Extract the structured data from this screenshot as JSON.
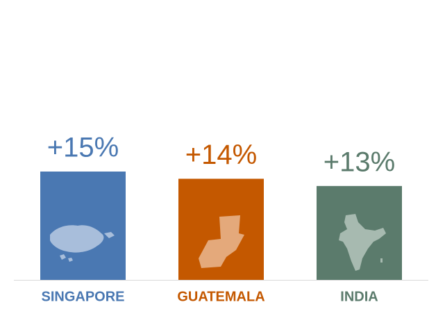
{
  "chart_data": {
    "type": "bar",
    "categories": [
      "SINGAPORE",
      "GUATEMALA",
      "INDIA"
    ],
    "values": [
      15,
      14,
      13
    ],
    "value_labels": [
      "+15%",
      "+14%",
      "+13%"
    ],
    "colors": [
      "#4a78b2",
      "#c45800",
      "#5b7b6c"
    ]
  }
}
